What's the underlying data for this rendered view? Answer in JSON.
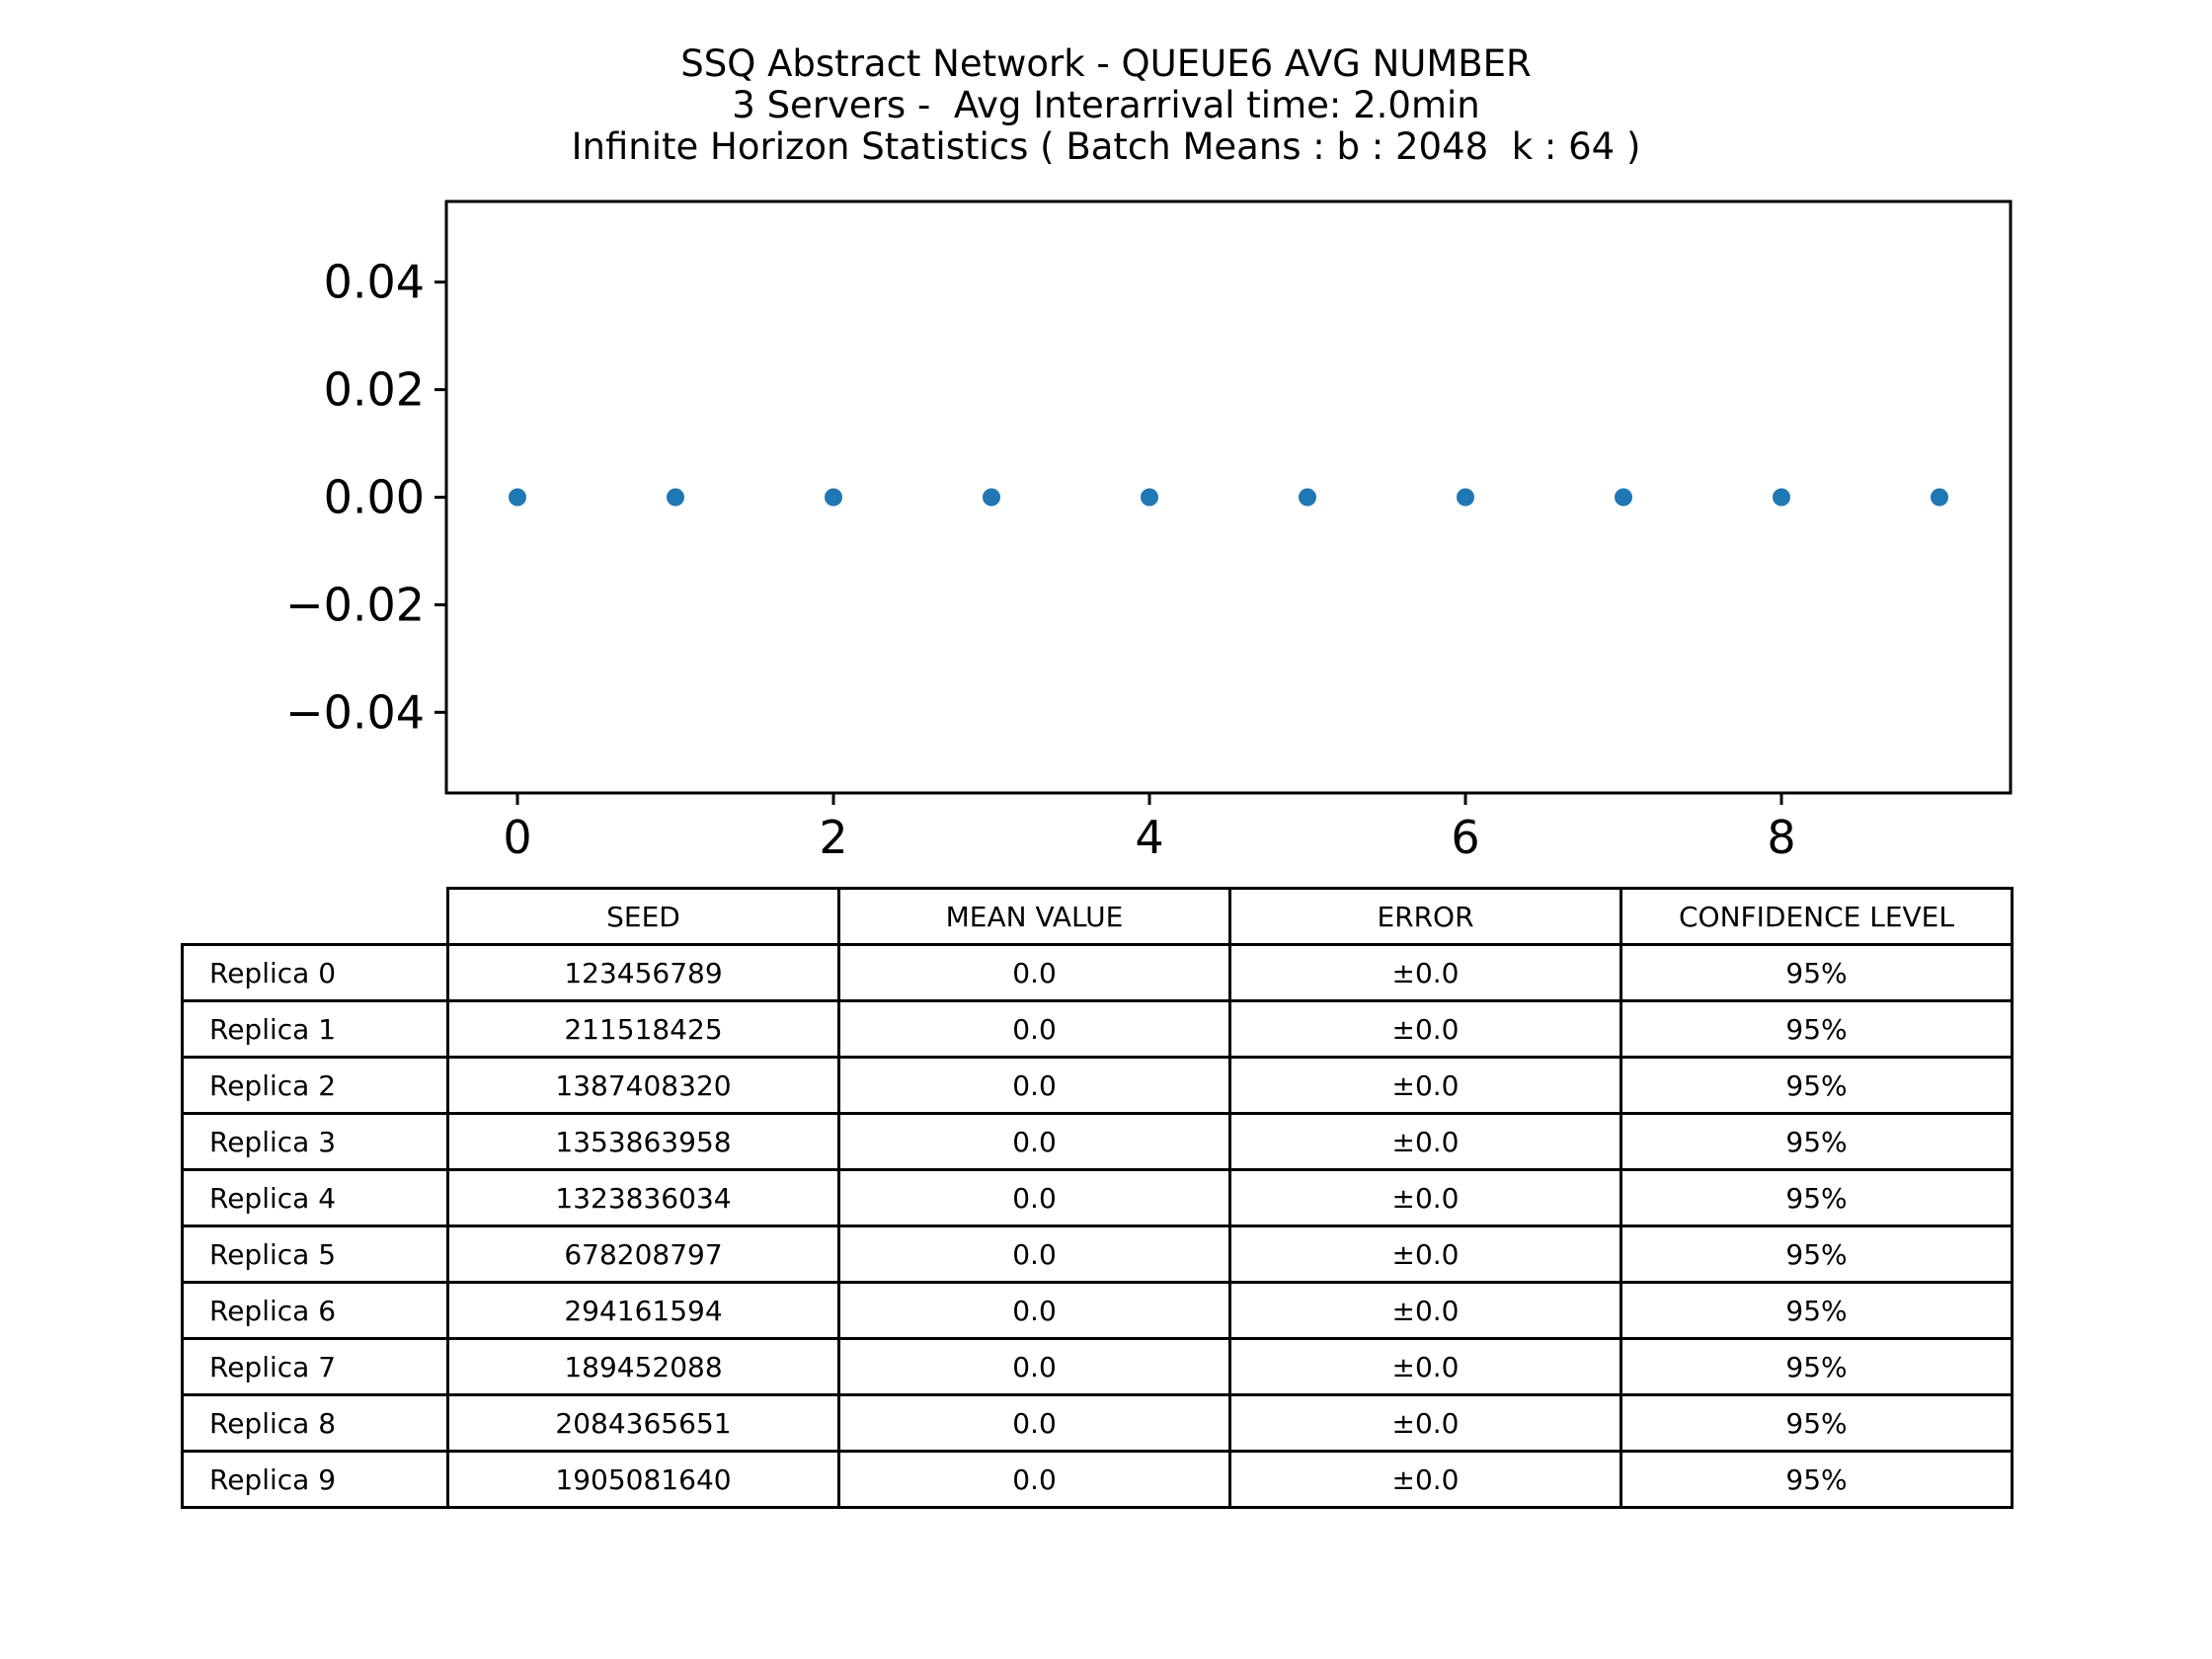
{
  "chart_data": {
    "type": "scatter",
    "title": [
      "SSQ Abstract Network - QUEUE6 AVG NUMBER",
      "3 Servers -  Avg Interarrival time: 2.0min",
      "Infinite Horizon Statistics ( Batch Means : b : 2048  k : 64 )"
    ],
    "x": [
      0,
      1,
      2,
      3,
      4,
      5,
      6,
      7,
      8,
      9
    ],
    "y": [
      0.0,
      0.0,
      0.0,
      0.0,
      0.0,
      0.0,
      0.0,
      0.0,
      0.0,
      0.0
    ],
    "xlim": [
      -0.45,
      9.45
    ],
    "ylim": [
      -0.055,
      0.055
    ],
    "xticks": [
      0,
      2,
      4,
      6,
      8
    ],
    "xtick_labels": [
      "0",
      "2",
      "4",
      "6",
      "8"
    ],
    "yticks": [
      0.04,
      0.02,
      0.0,
      -0.02,
      -0.04
    ],
    "ytick_labels": [
      "0.04",
      "0.02",
      "0.00",
      "−0.02",
      "−0.04"
    ],
    "xlabel": "",
    "ylabel": "",
    "grid": false,
    "marker_color": "#1f77b4"
  },
  "table": {
    "columns": [
      "SEED",
      "MEAN VALUE",
      "ERROR",
      "CONFIDENCE LEVEL"
    ],
    "rows": [
      {
        "label": "Replica 0",
        "seed": "123456789",
        "mean": "0.0",
        "error": "±0.0",
        "confidence": "95%"
      },
      {
        "label": "Replica 1",
        "seed": "211518425",
        "mean": "0.0",
        "error": "±0.0",
        "confidence": "95%"
      },
      {
        "label": "Replica 2",
        "seed": "1387408320",
        "mean": "0.0",
        "error": "±0.0",
        "confidence": "95%"
      },
      {
        "label": "Replica 3",
        "seed": "1353863958",
        "mean": "0.0",
        "error": "±0.0",
        "confidence": "95%"
      },
      {
        "label": "Replica 4",
        "seed": "1323836034",
        "mean": "0.0",
        "error": "±0.0",
        "confidence": "95%"
      },
      {
        "label": "Replica 5",
        "seed": "678208797",
        "mean": "0.0",
        "error": "±0.0",
        "confidence": "95%"
      },
      {
        "label": "Replica 6",
        "seed": "294161594",
        "mean": "0.0",
        "error": "±0.0",
        "confidence": "95%"
      },
      {
        "label": "Replica 7",
        "seed": "189452088",
        "mean": "0.0",
        "error": "±0.0",
        "confidence": "95%"
      },
      {
        "label": "Replica 8",
        "seed": "2084365651",
        "mean": "0.0",
        "error": "±0.0",
        "confidence": "95%"
      },
      {
        "label": "Replica 9",
        "seed": "1905081640",
        "mean": "0.0",
        "error": "±0.0",
        "confidence": "95%"
      }
    ]
  }
}
